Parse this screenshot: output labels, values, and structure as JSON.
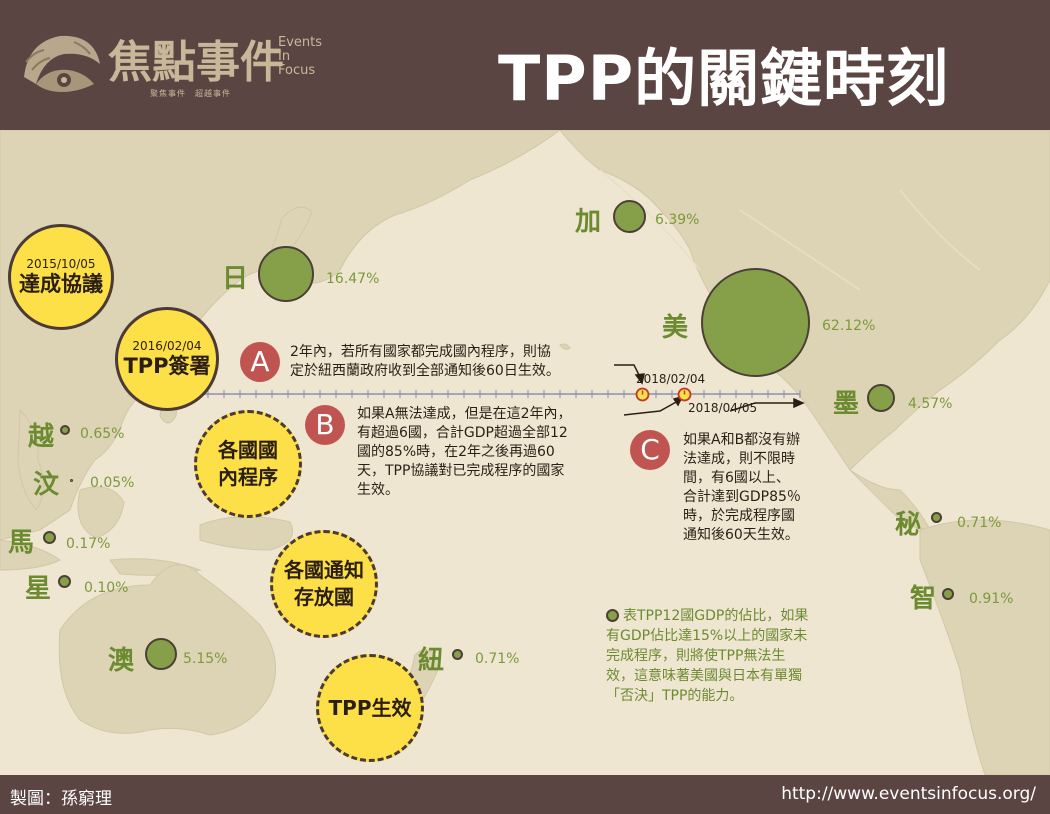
{
  "header": {
    "title": "TPP的關鍵時刻",
    "logo_cjk": "焦點事件",
    "logo_en": [
      "Events",
      "In",
      "Focus"
    ],
    "logo_tagline": "聚焦事件　超越事件"
  },
  "footer": {
    "credit": "製圖：孫窮理",
    "url": "http://www.eventsinfocus.org/"
  },
  "milestones": {
    "agreement": {
      "date": "2015/10/05",
      "label": "達成協議"
    },
    "signing": {
      "date": "2016/02/04",
      "label": "TPP簽署"
    },
    "domestic": {
      "line1": "各國國",
      "line2": "內程序"
    },
    "notify": {
      "line1": "各國通知",
      "line2": "存放國"
    },
    "effective": {
      "label": "TPP生效"
    }
  },
  "timeline": {
    "date1": "2018/02/04",
    "date2": "2018/04/05"
  },
  "scenarios": {
    "a": {
      "letter": "A",
      "text": [
        "2年內，若所有國家都完成國內程序，則協",
        "定於紐西蘭政府收到全部通知後60日生效。"
      ]
    },
    "b": {
      "letter": "B",
      "text": [
        "如果A無法達成，但是在這2年內，",
        "有超過6國，合計GDP超過全部12",
        "國的85%時，在2年之後再過60",
        "天，TPP協議對已完成程序的國家",
        "生效。"
      ]
    },
    "c": {
      "letter": "C",
      "text": [
        "如果A和B都沒有辦",
        "法達成，則不限時",
        "間，有6國以上、",
        "合計達到GDP85％",
        "時，於完成程序國",
        "通知後60天生效。"
      ]
    }
  },
  "legend": {
    "text": [
      "表TPP12國GDP的佔比，如果",
      "有GDP佔比達15%以上的國家未",
      "完成程序，則將使TPP無法生",
      "效，這意味著美國與日本有單獨",
      "「否決」TPP的能力。"
    ]
  },
  "countries": [
    {
      "name": "加",
      "pct": "6.39%",
      "share": 6.39
    },
    {
      "name": "日",
      "pct": "16.47%",
      "share": 16.47
    },
    {
      "name": "美",
      "pct": "62.12%",
      "share": 62.12
    },
    {
      "name": "墨",
      "pct": "4.57%",
      "share": 4.57
    },
    {
      "name": "越",
      "pct": "0.65%",
      "share": 0.65
    },
    {
      "name": "汶",
      "pct": "0.05%",
      "share": 0.05
    },
    {
      "name": "馬",
      "pct": "0.17%",
      "share": 0.17
    },
    {
      "name": "星",
      "pct": "0.10%",
      "share": 0.1
    },
    {
      "name": "澳",
      "pct": "5.15%",
      "share": 5.15
    },
    {
      "name": "紐",
      "pct": "0.71%",
      "share": 0.71
    },
    {
      "name": "秘",
      "pct": "0.71%",
      "share": 0.71
    },
    {
      "name": "智",
      "pct": "0.91%",
      "share": 0.91
    }
  ],
  "colors": {
    "header": "#5a4542",
    "background": "#efe6d2",
    "land": "#ddd3b5",
    "gdp_green": "#86a04a",
    "milestone_yellow": "#fde047",
    "marker_red": "#c05450"
  }
}
